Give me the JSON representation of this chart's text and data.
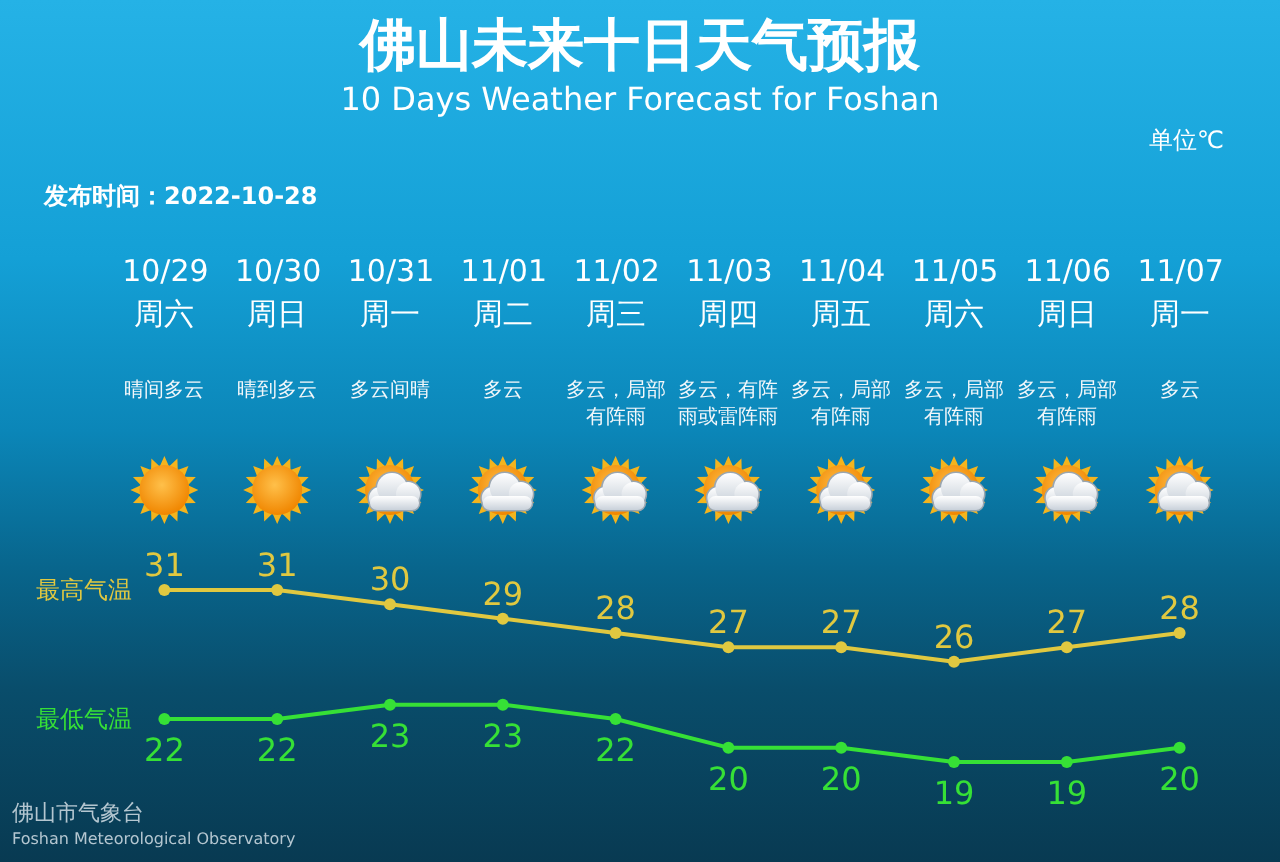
{
  "chart_data": {
    "type": "line",
    "title": "佛山未来十日天气预报",
    "subtitle": "10 Days Weather Forecast for Foshan",
    "annotations": [
      "单位℃",
      "发布时间：2022-10-28",
      "佛山市气象台",
      "Foshan Meteorological Observatory",
      "周六",
      "晴间多云",
      "周日",
      "晴到多云",
      "周一",
      "多云间晴",
      "周二",
      "多云",
      "周三",
      "多云，局部有阵雨",
      "周四",
      "多云，有阵雨或雷阵雨",
      "周五",
      "多云，局部有阵雨",
      "周六",
      "多云，局部有阵雨",
      "周日",
      "多云，局部有阵雨",
      "周一",
      "多云"
    ],
    "categories": [
      "10/29",
      "10/30",
      "10/31",
      "11/01",
      "11/02",
      "11/03",
      "11/04",
      "11/05",
      "11/06",
      "11/07"
    ],
    "series": [
      {
        "name": "最高气温",
        "color": "#e0c840",
        "values": [
          31,
          31,
          30,
          29,
          28,
          27,
          27,
          26,
          27,
          28
        ]
      },
      {
        "name": "最低气温",
        "color": "#36e036",
        "values": [
          22,
          22,
          23,
          23,
          22,
          20,
          20,
          19,
          19,
          20
        ]
      }
    ],
    "data_labels": true,
    "marker": "circle",
    "line_style": "solid",
    "tick_labels": "x"
  }
}
